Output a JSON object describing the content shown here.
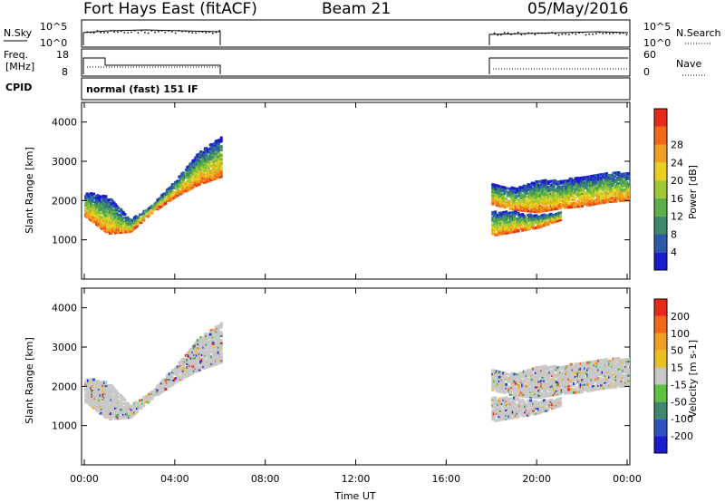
{
  "header": {
    "station": "Fort Hays East (fitACF)",
    "beam": "Beam 21",
    "date": "05/May/2016"
  },
  "summary": {
    "nsky_label": "N.Sky",
    "nsearch_label": "N.Search",
    "freq_label_1": "Freq.",
    "freq_label_2": "[MHz]",
    "nave_label": "Nave",
    "cpid_label": "CPID",
    "cpid_text": "normal (fast) 151 IF",
    "noise_ticks": [
      "10^5",
      "10^0"
    ],
    "freq_ticks": [
      "18",
      "8"
    ],
    "nave_ticks": [
      "60",
      "0"
    ]
  },
  "chart_data": [
    {
      "type": "heatmap",
      "name": "power",
      "ylabel": "Slant Range [km]",
      "xlabel": "Time UT",
      "x_ticks": [
        "00:00",
        "04:00",
        "08:00",
        "12:00",
        "16:00",
        "20:00",
        "00:00"
      ],
      "y_ticks": [
        1000,
        2000,
        3000,
        4000
      ],
      "ylim": [
        0,
        4500
      ],
      "xlim_hours": [
        0,
        24
      ],
      "colorbar": {
        "label": "Power [dB]",
        "ticks": [
          "4",
          "8",
          "12",
          "16",
          "20",
          "24",
          "28"
        ],
        "colors": [
          "#1b1bd0",
          "#2a5aa8",
          "#3d8a6a",
          "#5cb04a",
          "#a0c832",
          "#e8d020",
          "#f0a020",
          "#f06818",
          "#e82818"
        ]
      },
      "observing_periods_hours": [
        [
          0,
          6
        ],
        [
          18,
          24
        ]
      ],
      "scatter_bands": [
        {
          "t": [
            0.0,
            1.0,
            2.0,
            3.0,
            4.0,
            5.0,
            6.0
          ],
          "range_low": [
            1600,
            1150,
            1200,
            1700,
            2100,
            2400,
            2600
          ],
          "range_high": [
            2200,
            2100,
            1500,
            1900,
            2500,
            3200,
            3600
          ]
        },
        {
          "t": [
            18.0,
            19.0,
            20.0,
            21.0,
            22.0,
            23.0,
            24.0
          ],
          "range_low": [
            1900,
            1750,
            1700,
            1800,
            1850,
            1950,
            2000
          ],
          "range_high": [
            2400,
            2300,
            2500,
            2500,
            2600,
            2700,
            2700
          ]
        },
        {
          "t": [
            18.0,
            19.0,
            20.0,
            21.0
          ],
          "range_low": [
            1100,
            1200,
            1300,
            1500
          ],
          "range_high": [
            1700,
            1700,
            1600,
            1700
          ]
        }
      ]
    },
    {
      "type": "heatmap",
      "name": "velocity",
      "ylabel": "Slant Range [km]",
      "xlabel": "Time UT",
      "x_ticks": [
        "00:00",
        "04:00",
        "08:00",
        "12:00",
        "16:00",
        "20:00",
        "00:00"
      ],
      "y_ticks": [
        1000,
        2000,
        3000,
        4000
      ],
      "ylim": [
        0,
        4500
      ],
      "colorbar": {
        "label": "Velocity [m s-1]",
        "ticks": [
          "200",
          "100",
          "50",
          "15",
          "-15",
          "-50",
          "-100",
          "-200"
        ],
        "colors": [
          "#1b1bd0",
          "#3050c0",
          "#3d8a6a",
          "#60c040",
          "#c8c8c8",
          "#e8c020",
          "#f0a020",
          "#f06818",
          "#e82818"
        ]
      },
      "dominant_velocity_bin": "-15 to 15"
    }
  ]
}
